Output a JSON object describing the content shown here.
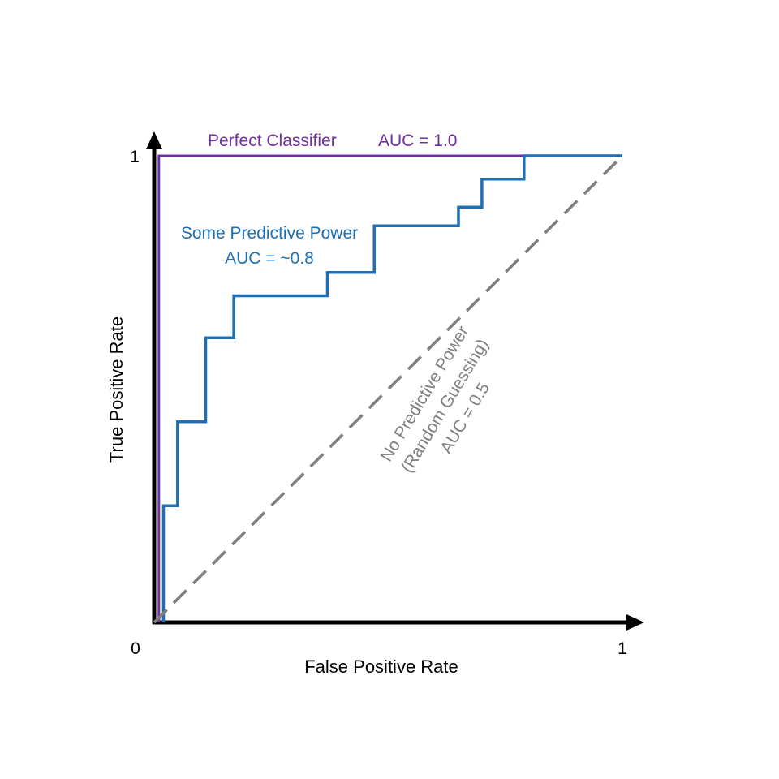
{
  "chart_data": {
    "type": "line",
    "xlabel": "False Positive Rate",
    "ylabel": "True Positive Rate",
    "xlim": [
      0,
      1
    ],
    "ylim": [
      0,
      1
    ],
    "x_ticks": [
      {
        "value": 0,
        "label": "0"
      },
      {
        "value": 1,
        "label": "1"
      }
    ],
    "y_ticks": [
      {
        "value": 1,
        "label": "1"
      }
    ],
    "grid": false,
    "series": [
      {
        "key": "perfect",
        "color": "#7030A0",
        "dashed": false,
        "labels": [
          "Perfect Classifier",
          "AUC = 1.0"
        ],
        "x": [
          0.01,
          0.01,
          1.0
        ],
        "y": [
          0.0,
          1.0,
          1.0
        ]
      },
      {
        "key": "some",
        "color": "#1F6FB5",
        "dashed": false,
        "labels": [
          "Some Predictive Power",
          "AUC = ~0.8"
        ],
        "x": [
          0.02,
          0.02,
          0.05,
          0.05,
          0.11,
          0.11,
          0.17,
          0.17,
          0.37,
          0.37,
          0.47,
          0.47,
          0.65,
          0.65,
          0.7,
          0.7,
          0.79,
          0.79,
          1.0
        ],
        "y": [
          0.0,
          0.25,
          0.25,
          0.43,
          0.43,
          0.61,
          0.61,
          0.7,
          0.7,
          0.75,
          0.75,
          0.85,
          0.85,
          0.89,
          0.89,
          0.95,
          0.95,
          1.0,
          1.0
        ]
      },
      {
        "key": "random",
        "color": "#7F7F7F",
        "dashed": true,
        "labels": [
          "No Predictive Power",
          "(Random Guessing)",
          "AUC = 0.5"
        ],
        "x": [
          0.0,
          1.0
        ],
        "y": [
          0.0,
          1.0
        ]
      }
    ]
  }
}
